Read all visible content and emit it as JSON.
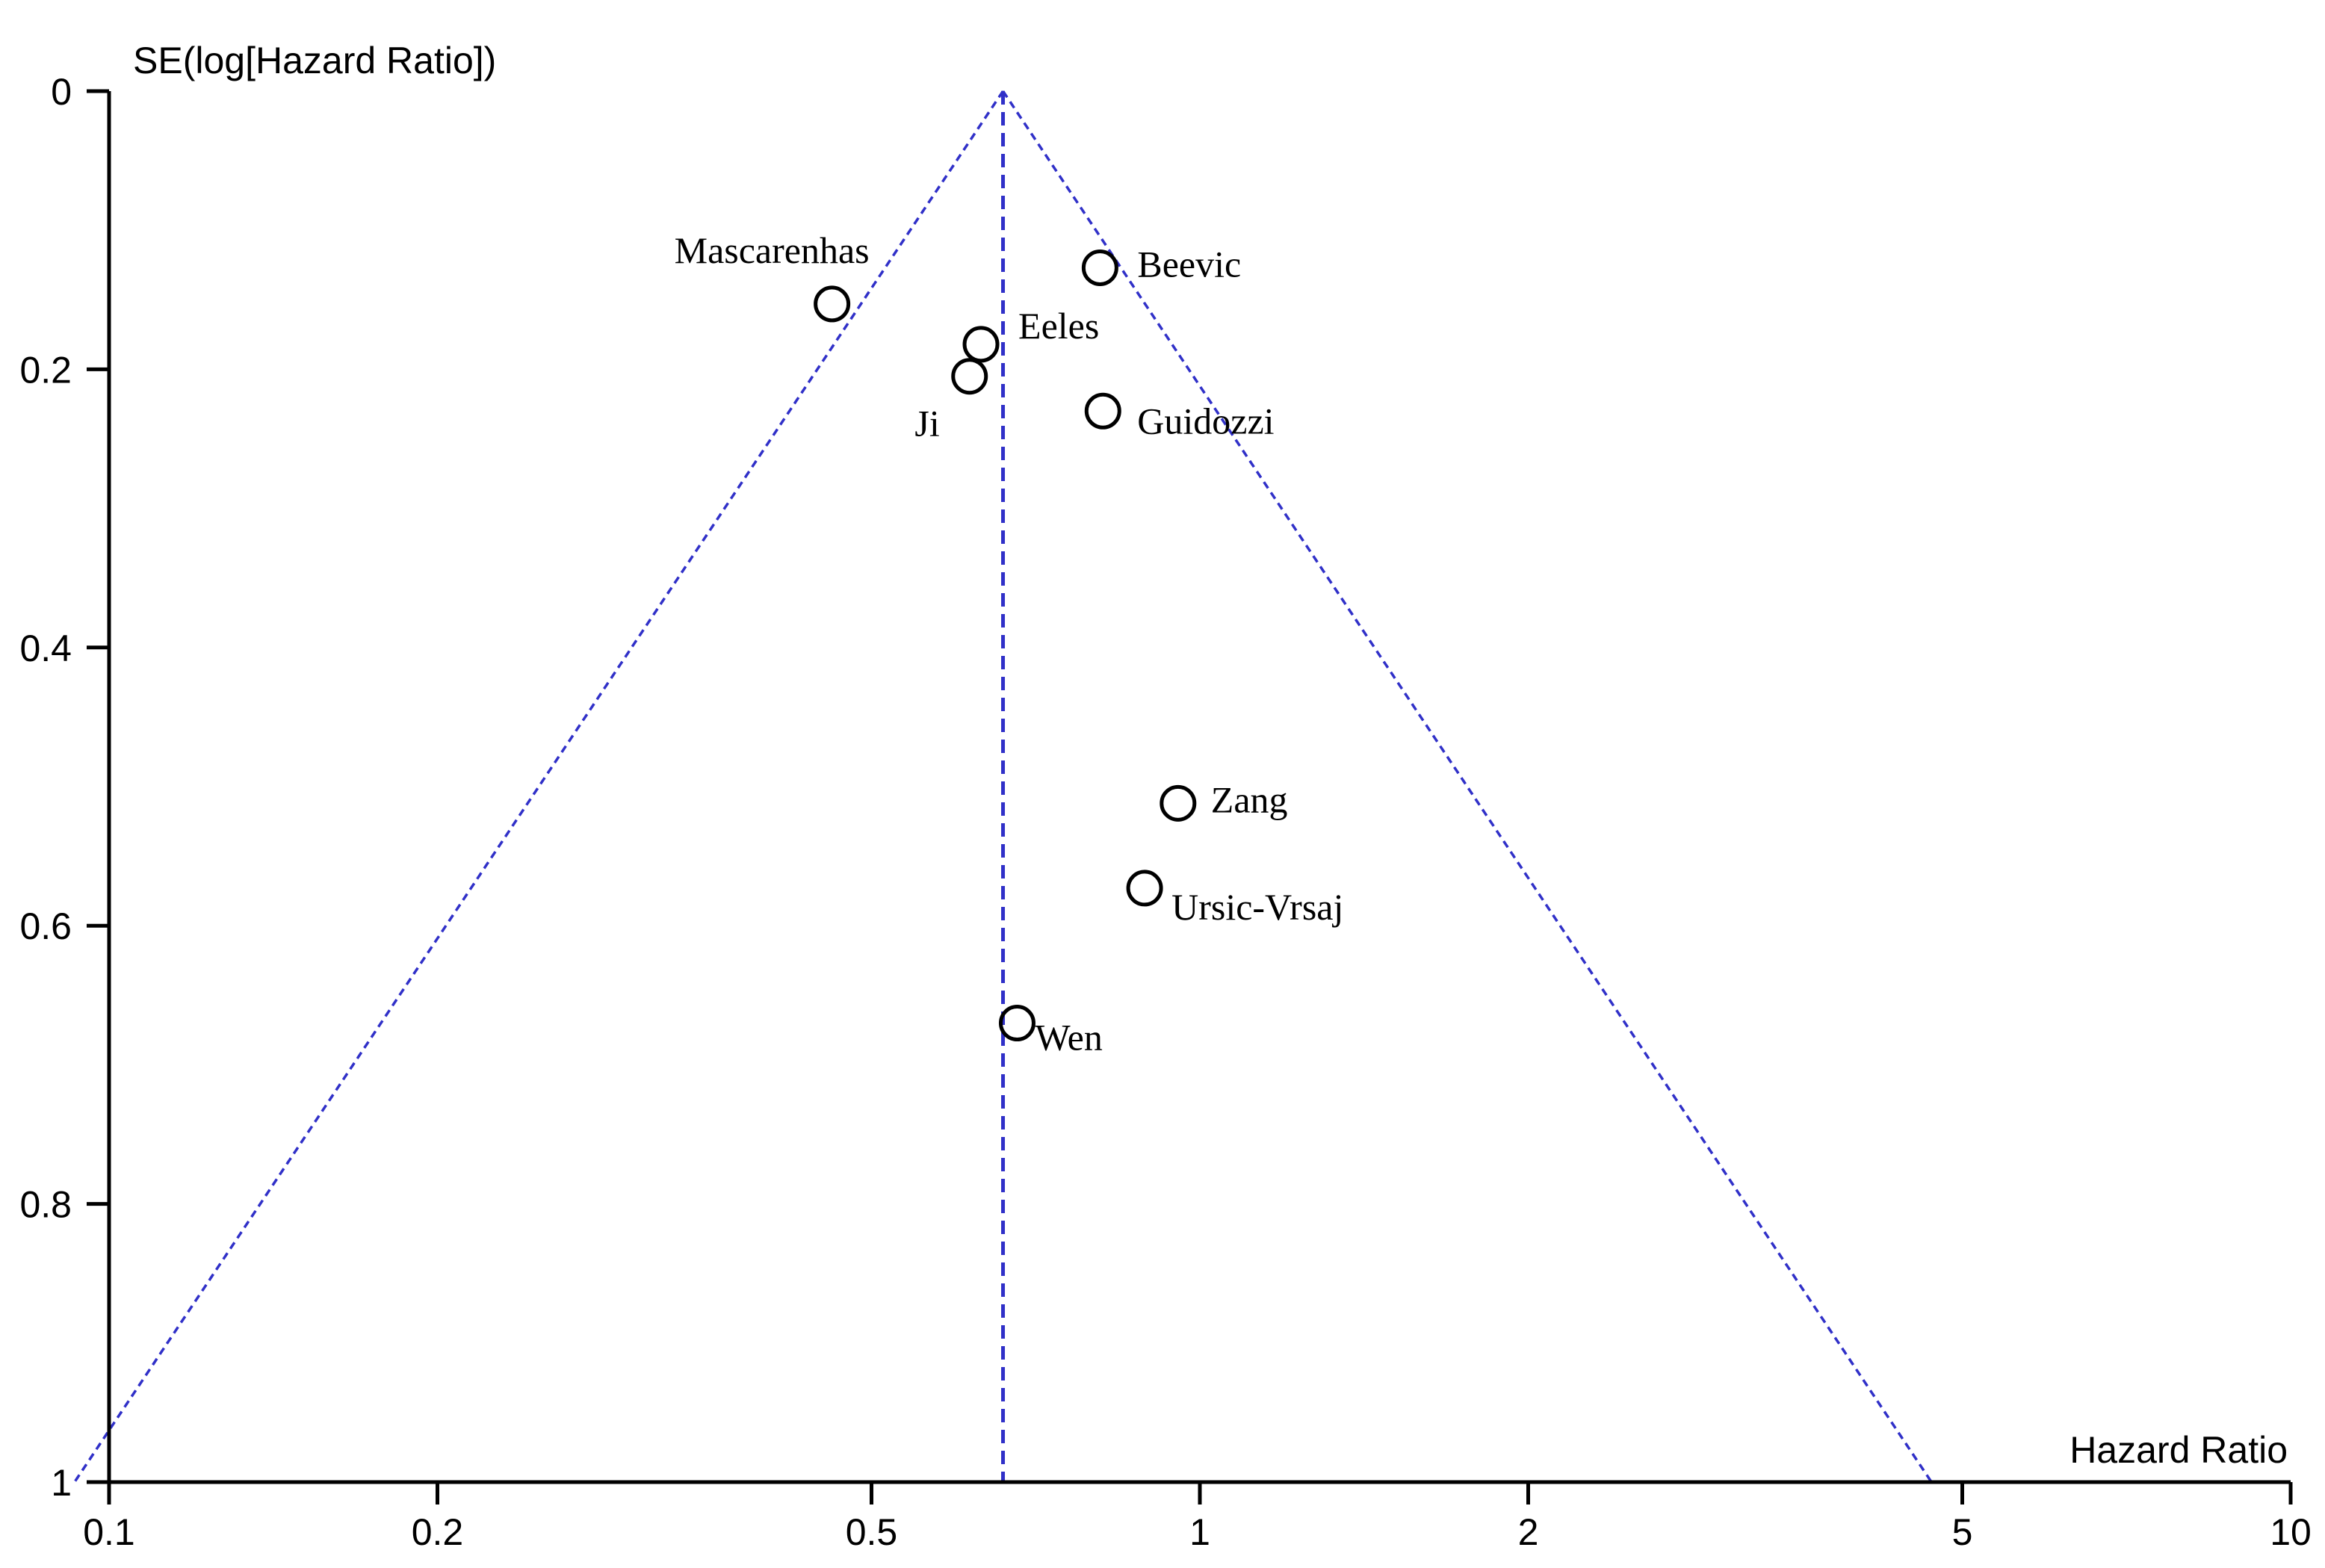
{
  "chart_data": {
    "type": "scatter",
    "subtype": "funnel-plot",
    "xlabel": "Hazard Ratio",
    "ylabel": "SE(log[Hazard Ratio])",
    "x_scale": "log",
    "xlim": [
      0.1,
      10
    ],
    "ylim": [
      0,
      1
    ],
    "y_inverted": true,
    "x_ticks": [
      0.1,
      0.2,
      0.5,
      1,
      2,
      5,
      10
    ],
    "x_tick_labels": [
      "0.1",
      "0.2",
      "0.5",
      "1",
      "2",
      "5",
      "10"
    ],
    "y_ticks": [
      0,
      0.2,
      0.4,
      0.6,
      0.8,
      1
    ],
    "y_tick_labels": [
      "0",
      "0.2",
      "0.4",
      "0.6",
      "0.8",
      "1"
    ],
    "grid": false,
    "pooled_estimate": 0.66,
    "funnel_ci_multiplier": 1.96,
    "points": [
      {
        "label": "Mascarenhas",
        "hr": 0.46,
        "se": 0.153
      },
      {
        "label": "Beevic",
        "hr": 0.81,
        "se": 0.127
      },
      {
        "label": "Eeles",
        "hr": 0.63,
        "se": 0.182
      },
      {
        "label": "Ji",
        "hr": 0.615,
        "se": 0.205
      },
      {
        "label": "Guidozzi",
        "hr": 0.815,
        "se": 0.23
      },
      {
        "label": "Zang",
        "hr": 0.955,
        "se": 0.512
      },
      {
        "label": "Ursic-Vrsaj",
        "hr": 0.89,
        "se": 0.573
      },
      {
        "label": "Wen",
        "hr": 0.68,
        "se": 0.67
      }
    ],
    "colors": {
      "funnel_lines": "#3030c8",
      "axes": "#000000",
      "markers": "#000000"
    }
  }
}
